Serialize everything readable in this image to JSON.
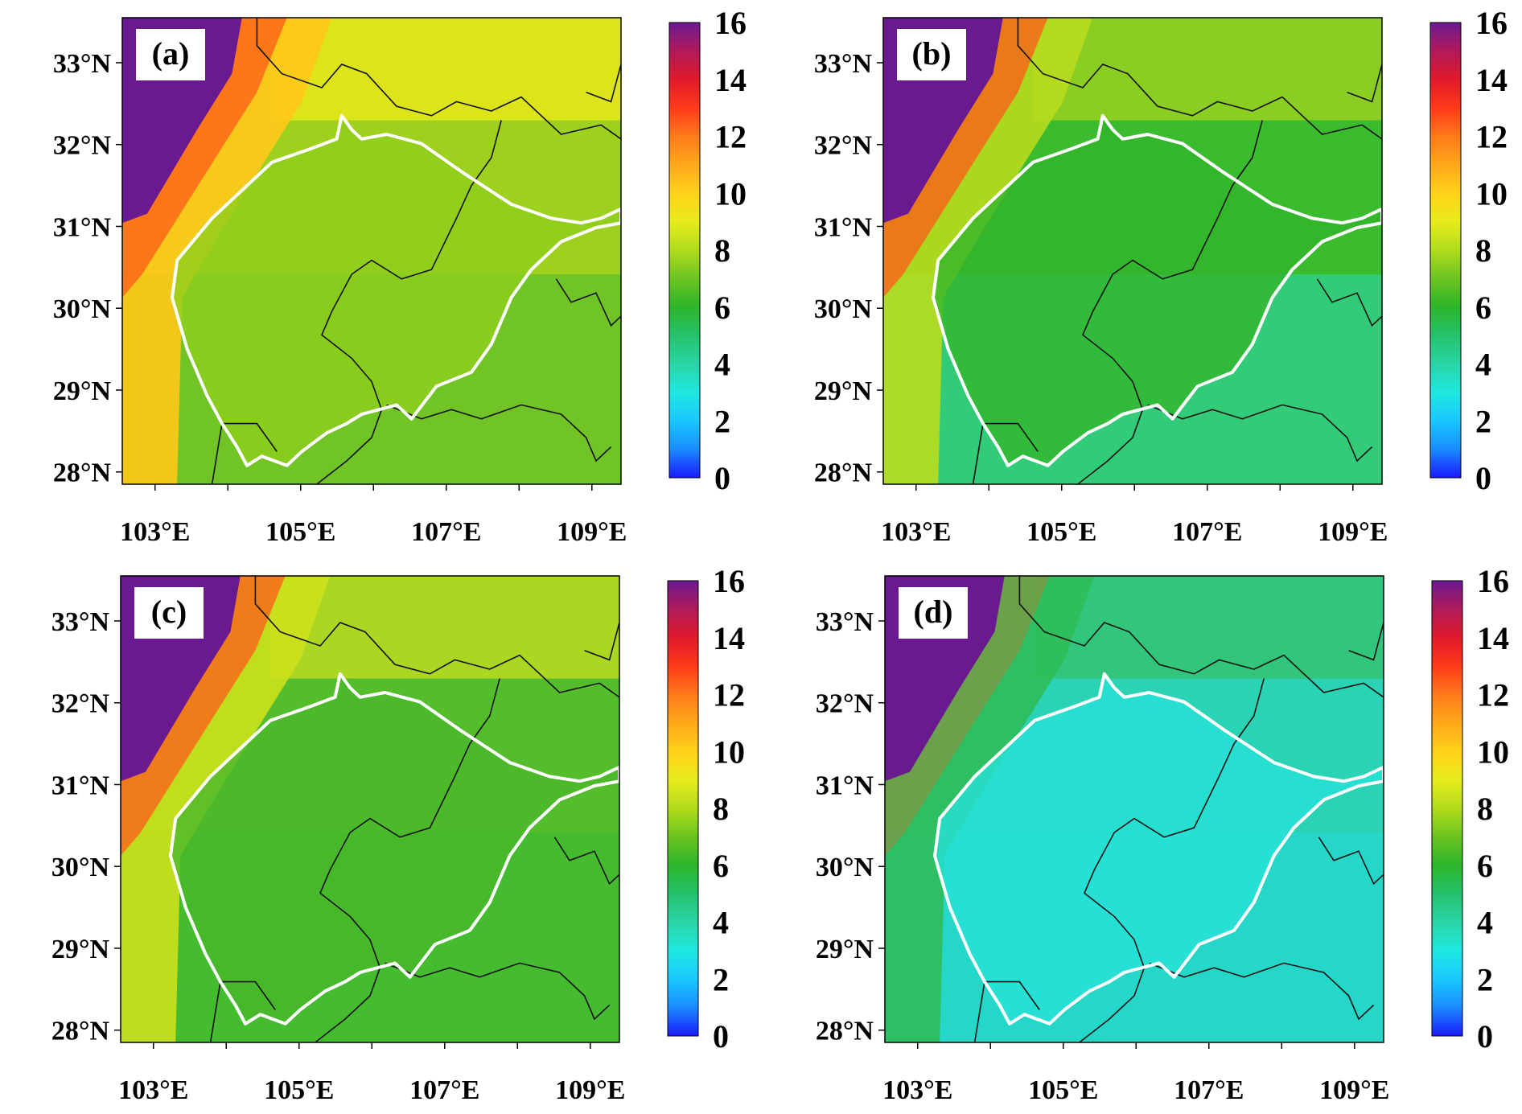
{
  "panels": [
    {
      "label": "(a)",
      "scheme": "warm"
    },
    {
      "label": "(b)",
      "scheme": "mid"
    },
    {
      "label": "(c)",
      "scheme": "green"
    },
    {
      "label": "(d)",
      "scheme": "cool"
    }
  ],
  "lat_ticks": [
    "28°N",
    "29°N",
    "30°N",
    "31°N",
    "32°N",
    "33°N"
  ],
  "lon_ticks": [
    "103°E",
    "105°E",
    "107°E",
    "109°E"
  ],
  "colorbar": {
    "min": 0,
    "max": 16,
    "tick_labels": [
      "0",
      "2",
      "4",
      "6",
      "8",
      "10",
      "12",
      "14",
      "16"
    ],
    "colors": [
      "#1a1aff",
      "#1a8cff",
      "#19c8ff",
      "#1ee8e0",
      "#2ad4a6",
      "#25c26c",
      "#2cb52a",
      "#6cc420",
      "#b0dc1c",
      "#e8ec1a",
      "#ffd21a",
      "#ffa81a",
      "#ff7a1a",
      "#ff3a1a",
      "#e01a2a",
      "#b01a5a",
      "#6a1a90"
    ]
  }
}
